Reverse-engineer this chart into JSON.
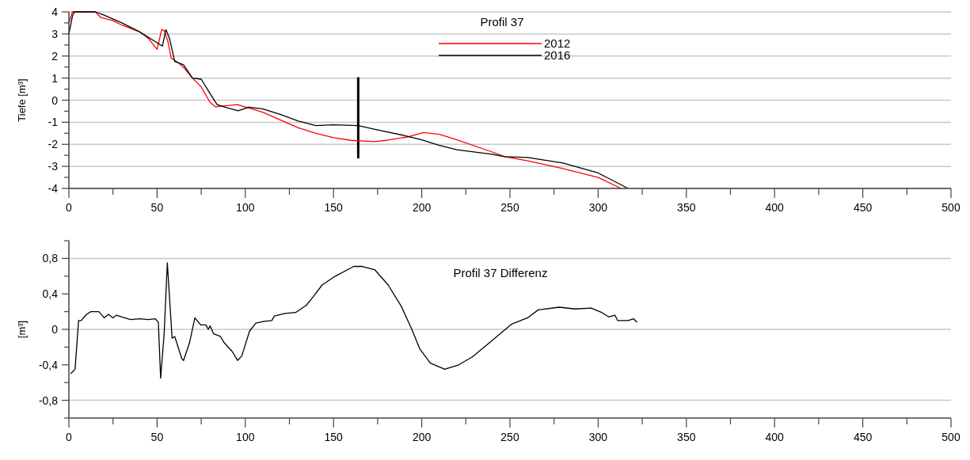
{
  "chart_data": [
    {
      "type": "line",
      "legend_title": "Profil 37",
      "ylabel": "Tiefe [m³]",
      "legend": "top",
      "grid": "y",
      "xlim": [
        0,
        500
      ],
      "ylim": [
        -4,
        4
      ],
      "xticks": [
        0,
        {
          "value": 25,
          "label": null
        },
        50,
        {
          "value": 75,
          "label": null
        },
        100,
        {
          "value": 125,
          "label": null
        },
        150,
        {
          "value": 175,
          "label": null
        },
        200,
        {
          "value": 225,
          "label": null
        },
        250,
        {
          "value": 275,
          "label": null
        },
        300,
        {
          "value": 325,
          "label": null
        },
        350,
        {
          "value": 375,
          "label": null
        },
        400,
        {
          "value": 425,
          "label": null
        },
        450,
        {
          "value": 475,
          "label": null
        },
        500
      ],
      "yticks": [
        -4,
        {
          "value": -3.5,
          "label": null
        },
        -3,
        {
          "value": -2.5,
          "label": null
        },
        -2,
        {
          "value": -1.5,
          "label": null
        },
        -1,
        {
          "value": -0.5,
          "label": null
        },
        0,
        {
          "value": 0.5,
          "label": null
        },
        1,
        {
          "value": 1.5,
          "label": null
        },
        2,
        {
          "value": 2.5,
          "label": null
        },
        3,
        {
          "value": 3.5,
          "label": null
        },
        4
      ],
      "ref_lines": [
        {
          "axis": "x",
          "value": 164,
          "color": "#000000"
        }
      ],
      "series": [
        {
          "name": "2012",
          "color": "#ff0000",
          "x": [
            0,
            2,
            15,
            18,
            25,
            30,
            40,
            45,
            50,
            52.6,
            54,
            56,
            58,
            62,
            66,
            70,
            75,
            80,
            83,
            90,
            95.5,
            102,
            110,
            120,
            130,
            140,
            150,
            160,
            173,
            180,
            193,
            201,
            210,
            220,
            240,
            247,
            260,
            280,
            300,
            313
          ],
          "values": [
            3.5,
            4,
            4,
            3.75,
            3.6,
            3.4,
            3.1,
            2.8,
            2.3,
            3.2,
            3.15,
            2.7,
            1.9,
            1.7,
            1.4,
            1.0,
            0.6,
            -0.1,
            -0.3,
            -0.25,
            -0.2,
            -0.35,
            -0.55,
            -0.9,
            -1.25,
            -1.5,
            -1.7,
            -1.82,
            -1.88,
            -1.82,
            -1.65,
            -1.47,
            -1.55,
            -1.8,
            -2.35,
            -2.56,
            -2.75,
            -3.1,
            -3.5,
            -4
          ]
        },
        {
          "name": "2016",
          "color": "#000000",
          "x": [
            0,
            2,
            3,
            15,
            20,
            30,
            40,
            50,
            53,
            55,
            57,
            60,
            65,
            70,
            75,
            80,
            84,
            90,
            96,
            102,
            110,
            120,
            130,
            140,
            150,
            164,
            175,
            190,
            200,
            210,
            220,
            240,
            247,
            260,
            280,
            300,
            317
          ],
          "values": [
            3,
            3.8,
            4,
            4,
            3.85,
            3.5,
            3.1,
            2.6,
            2.45,
            3.2,
            2.8,
            1.75,
            1.6,
            1.0,
            0.95,
            0.3,
            -0.2,
            -0.35,
            -0.48,
            -0.32,
            -0.4,
            -0.65,
            -0.95,
            -1.15,
            -1.12,
            -1.15,
            -1.35,
            -1.6,
            -1.8,
            -2.05,
            -2.25,
            -2.45,
            -2.56,
            -2.6,
            -2.85,
            -3.3,
            -4
          ]
        }
      ]
    },
    {
      "type": "line",
      "title": "Profil 37 Differenz",
      "ylabel": "[m³]",
      "xlim": [
        0,
        500
      ],
      "ylim": [
        -1,
        1
      ],
      "xticks": [
        0,
        {
          "value": 25,
          "label": null
        },
        50,
        {
          "value": 75,
          "label": null
        },
        100,
        {
          "value": 125,
          "label": null
        },
        150,
        {
          "value": 175,
          "label": null
        },
        200,
        {
          "value": 225,
          "label": null
        },
        250,
        {
          "value": 275,
          "label": null
        },
        300,
        {
          "value": 325,
          "label": null
        },
        350,
        {
          "value": 375,
          "label": null
        },
        400,
        {
          "value": 425,
          "label": null
        },
        450,
        {
          "value": 475,
          "label": null
        },
        500
      ],
      "yticks": [
        {
          "value": -1,
          "label": null
        },
        {
          "value": -0.8,
          "label": "-0,8"
        },
        {
          "value": -0.6,
          "label": null
        },
        {
          "value": -0.4,
          "label": "-0,4"
        },
        {
          "value": -0.2,
          "label": null
        },
        0,
        {
          "value": 0.2,
          "label": null
        },
        {
          "value": 0.4,
          "label": "0,4"
        },
        {
          "value": 0.6,
          "label": null
        },
        {
          "value": 0.8,
          "label": "0,8"
        },
        {
          "value": 1,
          "label": null
        }
      ],
      "ref_lines": [
        {
          "axis": "y",
          "value": 0.8,
          "color": "#c8c8c8"
        },
        {
          "axis": "y",
          "value": 0,
          "color": "#c8c8c8"
        },
        {
          "axis": "y",
          "value": -0.8,
          "color": "#c8c8c8"
        }
      ],
      "series": [
        {
          "color": "#000000",
          "x": [
            1,
            3.5,
            5.5,
            7,
            10,
            12.5,
            17,
            20,
            22.5,
            25,
            27,
            30,
            35,
            40,
            45,
            49,
            50.7,
            52,
            54,
            55.8,
            58.5,
            60,
            64,
            65,
            68.4,
            71.4,
            74.7,
            77.7,
            79,
            80,
            82,
            85.9,
            88,
            92.6,
            95.6,
            98,
            102.4,
            106,
            110.6,
            115,
            116.5,
            122.5,
            128.5,
            134.5,
            139,
            143.5,
            151,
            161.5,
            166,
            173.5,
            181,
            188.4,
            194.4,
            198.9,
            204.9,
            213,
            221,
            228.7,
            239,
            251,
            260,
            266,
            278,
            287,
            296,
            302,
            306,
            309.5,
            311,
            317,
            320,
            322
          ],
          "values": [
            -0.5,
            -0.45,
            0.1,
            0.1,
            0.17,
            0.2,
            0.2,
            0.13,
            0.17,
            0.13,
            0.16,
            0.14,
            0.11,
            0.12,
            0.11,
            0.12,
            0.08,
            -0.55,
            -0.05,
            0.75,
            -0.1,
            -0.08,
            -0.33,
            -0.35,
            -0.15,
            0.13,
            0.05,
            0.05,
            0.0,
            0.04,
            -0.05,
            -0.08,
            -0.15,
            -0.25,
            -0.35,
            -0.3,
            -0.02,
            0.07,
            0.09,
            0.1,
            0.15,
            0.18,
            0.19,
            0.27,
            0.38,
            0.5,
            0.6,
            0.71,
            0.71,
            0.67,
            0.5,
            0.26,
            0.0,
            -0.22,
            -0.38,
            -0.45,
            -0.4,
            -0.31,
            -0.14,
            0.06,
            0.13,
            0.22,
            0.25,
            0.23,
            0.24,
            0.19,
            0.14,
            0.16,
            0.1,
            0.1,
            0.12,
            0.08
          ]
        }
      ]
    }
  ]
}
